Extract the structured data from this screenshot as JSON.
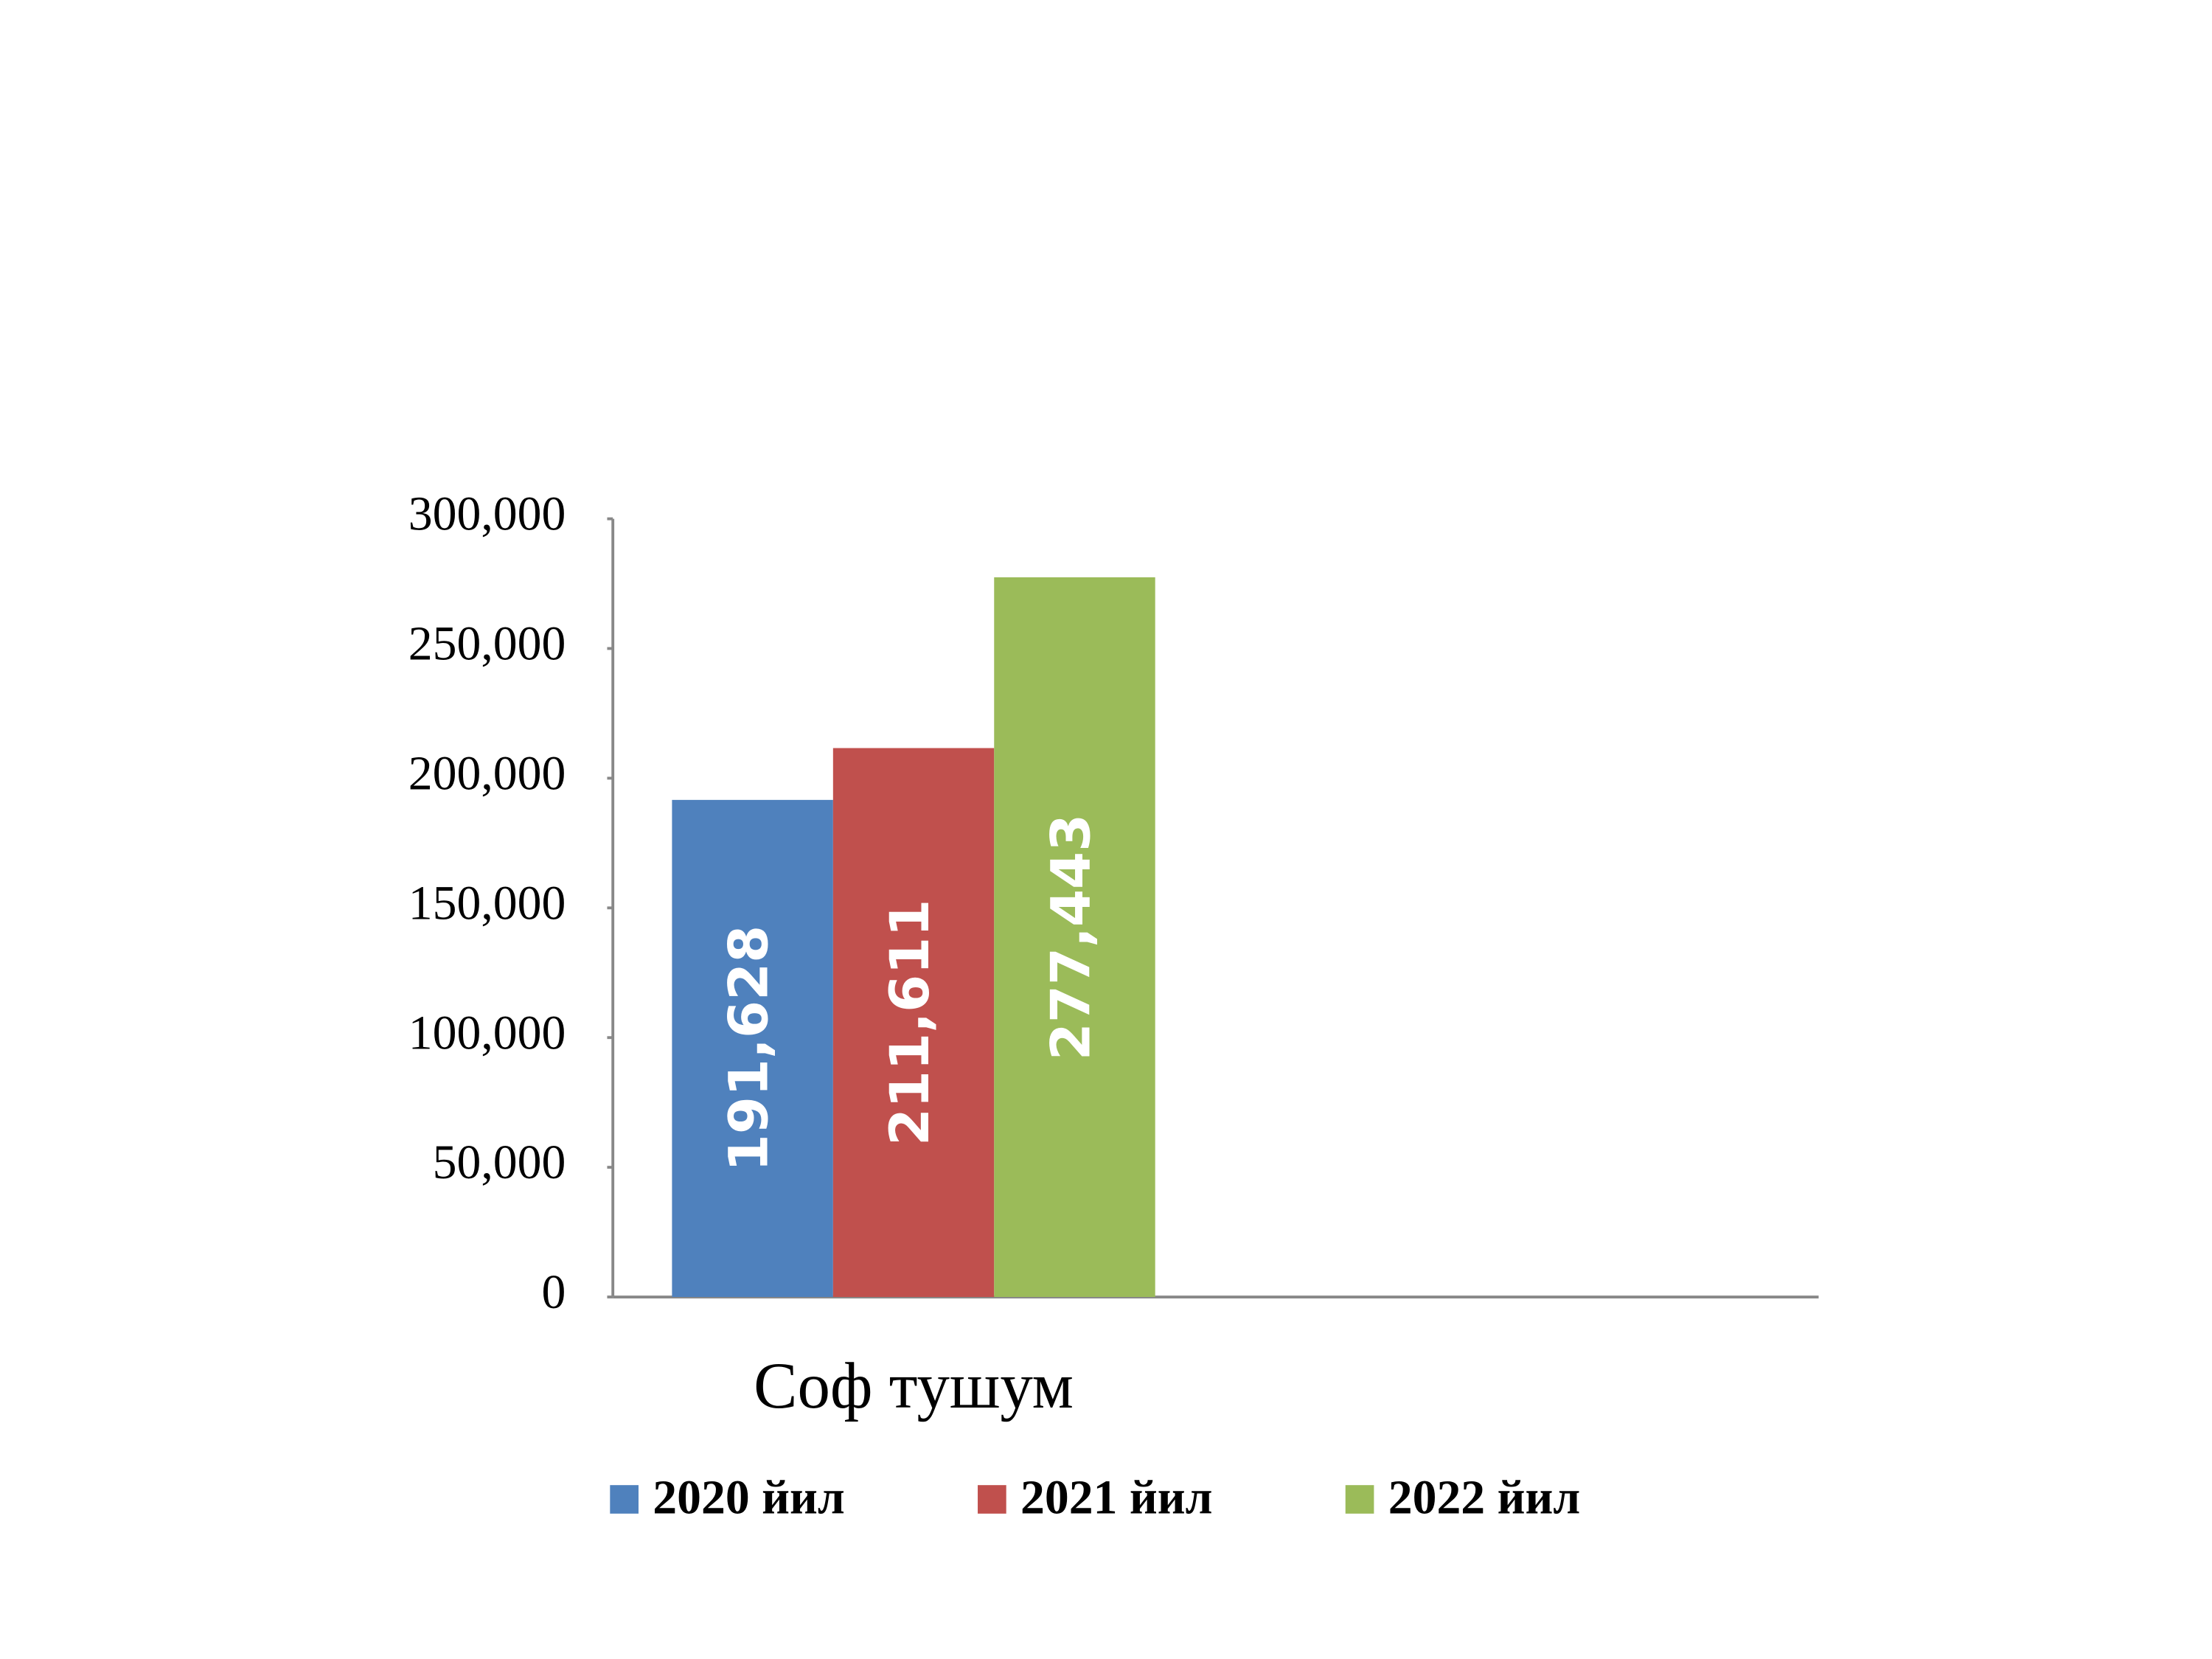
{
  "chart_data": {
    "type": "bar",
    "categories": [
      "Соф тушум"
    ],
    "series": [
      {
        "name": "2020 йил",
        "color": "#4f81bd",
        "values": [
          191628
        ],
        "value_labels": [
          "191,628"
        ]
      },
      {
        "name": "2021 йил",
        "color": "#c0504d",
        "values": [
          211611
        ],
        "value_labels": [
          "211,611"
        ]
      },
      {
        "name": "2022 йил",
        "color": "#9bbb59",
        "values": [
          277443
        ],
        "value_labels": [
          "277,443"
        ]
      }
    ],
    "ylim": [
      0,
      300000
    ],
    "yticks": [
      0,
      {
        "value": 50000,
        "label": "50,000"
      },
      {
        "value": 100000,
        "label": "100,000"
      },
      {
        "value": 150000,
        "label": "150,000"
      },
      {
        "value": 200000,
        "label": "200,000"
      },
      {
        "value": 250000,
        "label": "250,000"
      },
      {
        "value": 300000,
        "label": "300,000"
      }
    ],
    "legend": "bottom"
  }
}
